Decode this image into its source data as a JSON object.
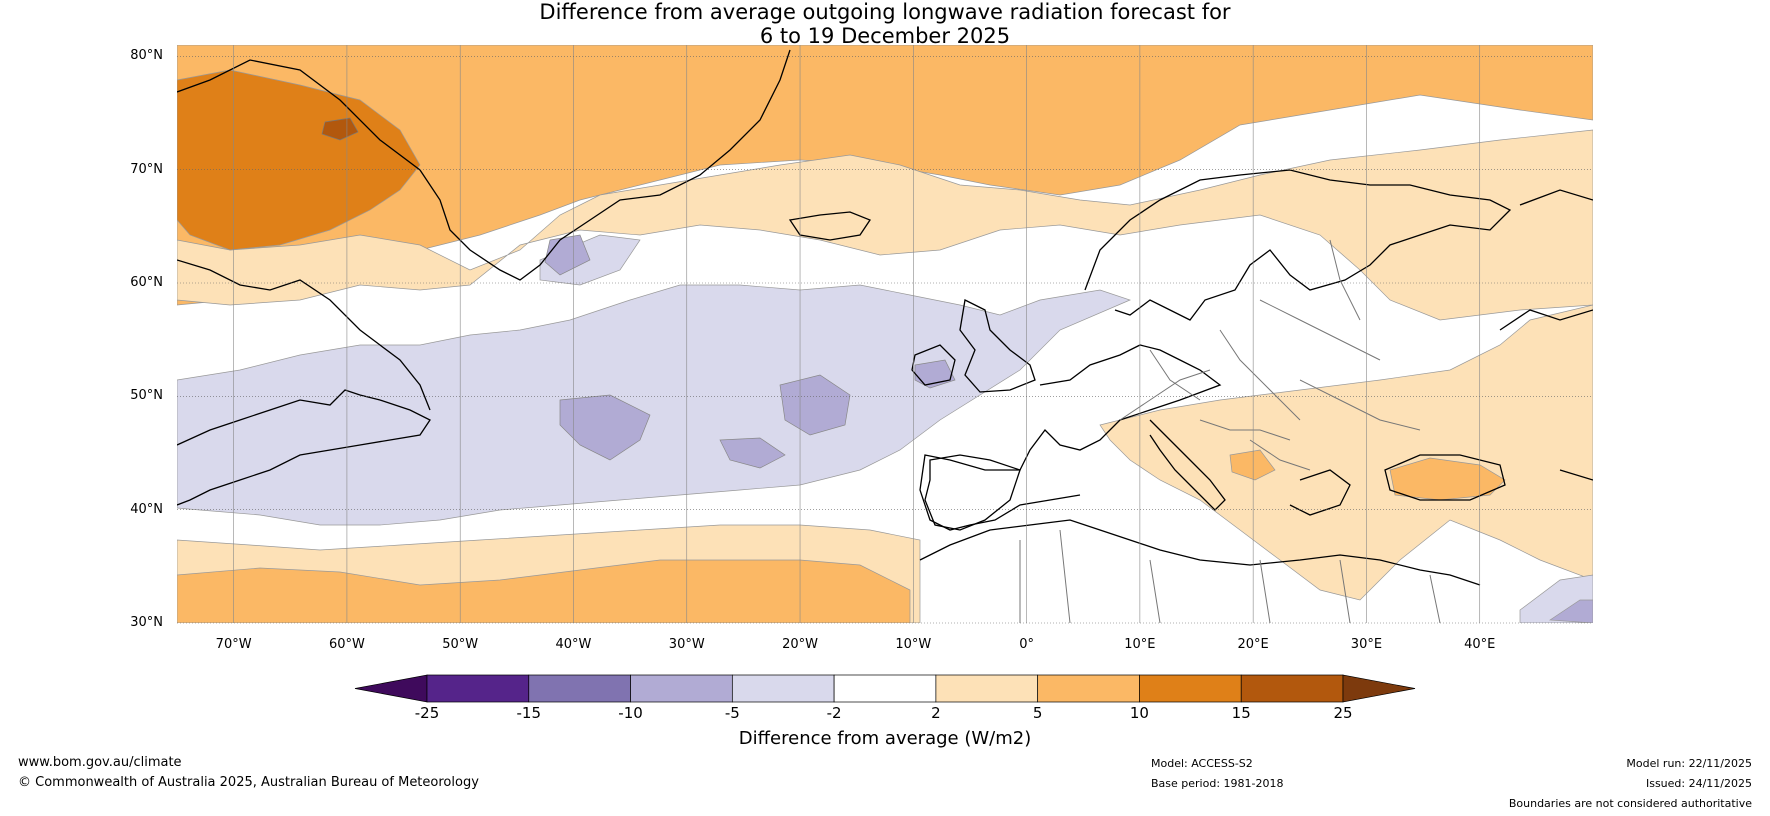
{
  "title": {
    "line1": "Difference from average outgoing longwave radiation forecast for",
    "line2": "6 to 19 December 2025"
  },
  "map": {
    "lat_labels": [
      "80°N",
      "70°N",
      "60°N",
      "50°N",
      "40°N",
      "30°N"
    ],
    "lon_labels": [
      "70°W",
      "60°W",
      "50°W",
      "40°W",
      "30°W",
      "20°W",
      "10°W",
      "0°",
      "10°E",
      "20°E",
      "30°E",
      "40°E"
    ],
    "lat_values": [
      80,
      70,
      60,
      50,
      40,
      30
    ],
    "lon_values": [
      -70,
      -60,
      -50,
      -40,
      -30,
      -20,
      -10,
      0,
      10,
      20,
      30,
      40
    ],
    "extent": {
      "lon_min": -75,
      "lon_max": 50,
      "lat_min": 30,
      "lat_max": 81
    }
  },
  "colorbar": {
    "ticks": [
      "-25",
      "-15",
      "-10",
      "-5",
      "-2",
      "2",
      "5",
      "10",
      "15",
      "25"
    ],
    "colors": [
      "#3f0a5c",
      "#55248a",
      "#8073b0",
      "#b1abd4",
      "#d9d9ec",
      "#ffffff",
      "#fde1b7",
      "#fbb865",
      "#df8018",
      "#b2580d",
      "#7d3a0d"
    ],
    "label": "Difference from average (W/m2)"
  },
  "footer": {
    "website": "www.bom.gov.au/climate",
    "copyright": "© Commonwealth of Australia 2025, Australian Bureau of Meteorology",
    "model": "Model: ACCESS-S2",
    "base_period": "Base period: 1981-2018",
    "model_run": "Model run: 22/11/2025",
    "issued": "Issued: 24/11/2025",
    "disclaimer": "Boundaries are not considered authoritative"
  }
}
